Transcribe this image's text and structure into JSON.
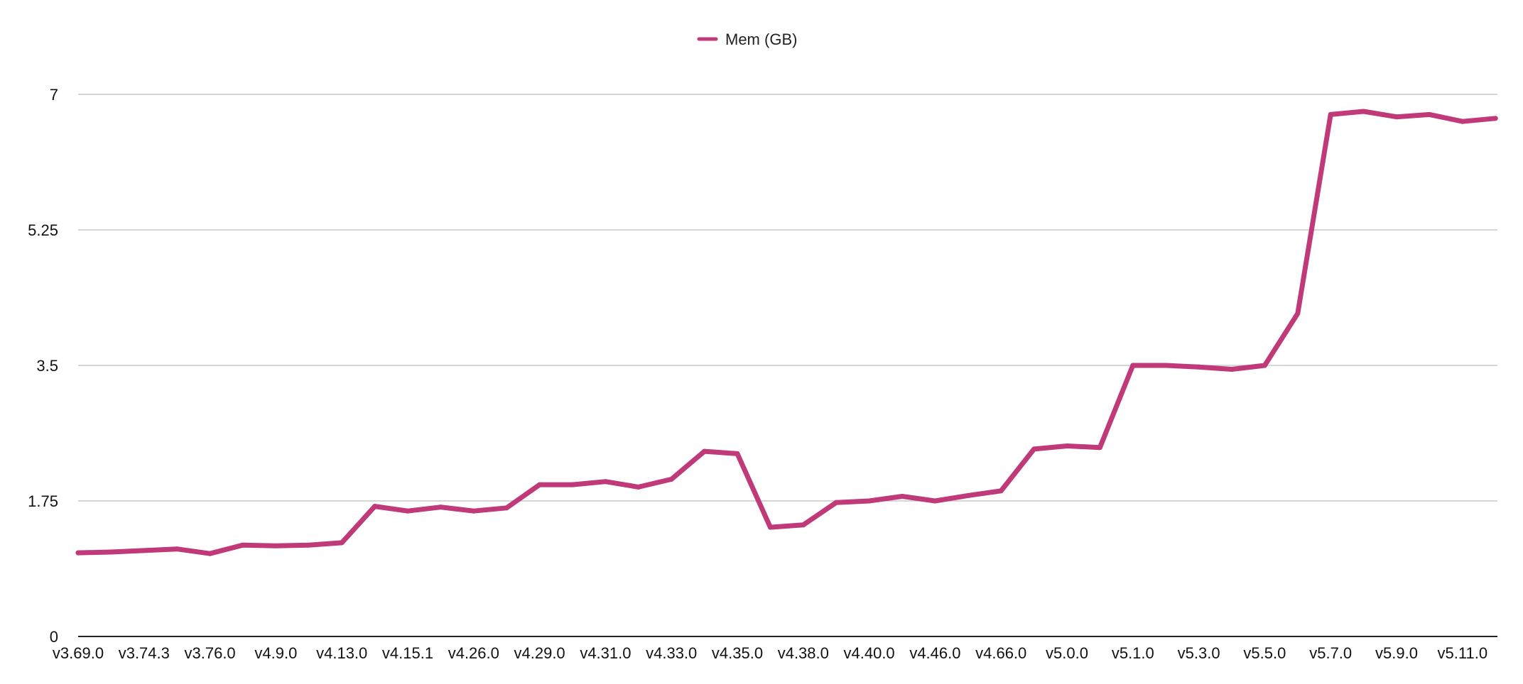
{
  "chart_data": {
    "type": "line",
    "title": "",
    "xlabel": "",
    "ylabel": "",
    "legend_position": "top-center",
    "grid": true,
    "ylim": [
      0,
      7
    ],
    "yticks": [
      0,
      1.75,
      3.5,
      5.25,
      7
    ],
    "ytick_labels": [
      "0",
      "1.75",
      "3.5",
      "5.25",
      "7"
    ],
    "x_tick_labels": [
      "v3.69.0",
      "v3.74.3",
      "v3.76.0",
      "v4.9.0",
      "v4.13.0",
      "v4.15.1",
      "v4.26.0",
      "v4.29.0",
      "v4.31.0",
      "v4.33.0",
      "v4.35.0",
      "v4.38.0",
      "v4.40.0",
      "v4.46.0",
      "v4.66.0",
      "v5.0.0",
      "v5.1.0",
      "v5.3.0",
      "v5.5.0",
      "v5.7.0",
      "v5.9.0",
      "v5.11.0"
    ],
    "x_tick_every": 2,
    "series": [
      {
        "name": "Mem (GB)",
        "color": "#C03A7A",
        "values": [
          1.08,
          1.09,
          1.11,
          1.13,
          1.07,
          1.18,
          1.17,
          1.18,
          1.21,
          1.68,
          1.62,
          1.67,
          1.62,
          1.66,
          1.96,
          1.96,
          2.0,
          1.93,
          2.03,
          2.39,
          2.36,
          1.41,
          1.44,
          1.73,
          1.75,
          1.81,
          1.75,
          1.82,
          1.88,
          2.42,
          2.46,
          2.44,
          3.5,
          3.5,
          3.48,
          3.45,
          3.5,
          4.17,
          6.74,
          6.78,
          6.71,
          6.74,
          6.65,
          6.69
        ]
      }
    ]
  }
}
